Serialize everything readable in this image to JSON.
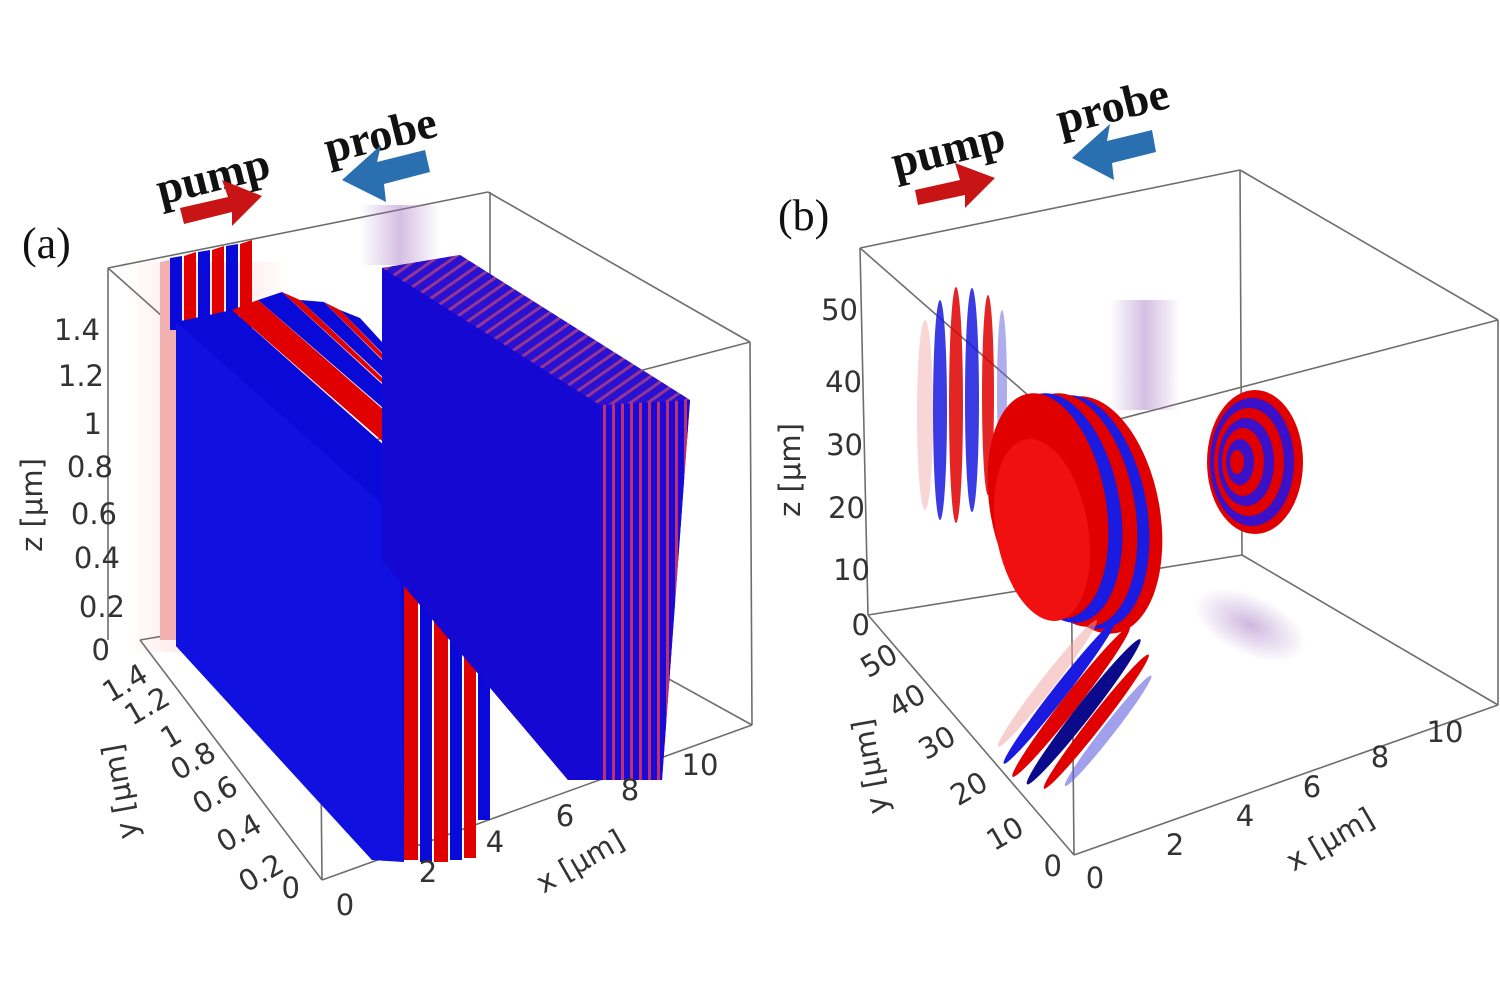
{
  "figure": {
    "panels": [
      {
        "id": "a",
        "label": "(a)",
        "annotations": {
          "pump": "pump",
          "probe": "probe"
        },
        "z_axis": {
          "label": "z [μm]",
          "ticks": [
            "0",
            "0.2",
            "0.4",
            "0.6",
            "0.8",
            "1",
            "1.2",
            "1.4"
          ]
        },
        "y_axis": {
          "label": "y [μm]",
          "ticks": [
            "0",
            "0.2",
            "0.4",
            "0.6",
            "0.8",
            "1",
            "1.2",
            "1.4"
          ]
        },
        "x_axis": {
          "label": "x [μm]",
          "ticks": [
            "0",
            "2",
            "4",
            "6",
            "8",
            "10"
          ]
        }
      },
      {
        "id": "b",
        "label": "(b)",
        "annotations": {
          "pump": "pump",
          "probe": "probe"
        },
        "z_axis": {
          "label": "z [μm]",
          "ticks": [
            "0",
            "10",
            "20",
            "30",
            "40",
            "50"
          ]
        },
        "y_axis": {
          "label": "y [μm]",
          "ticks": [
            "0",
            "10",
            "20",
            "30",
            "40",
            "50"
          ]
        },
        "x_axis": {
          "label": "x [μm]",
          "ticks": [
            "0",
            "2",
            "4",
            "6",
            "8",
            "10"
          ]
        }
      }
    ],
    "colors": {
      "positive": "#e00000",
      "negative": "#0a0ad8",
      "pump_arrow": "#c81414",
      "probe_arrow": "#2a6fb0",
      "box": "#6e6e6e"
    }
  }
}
